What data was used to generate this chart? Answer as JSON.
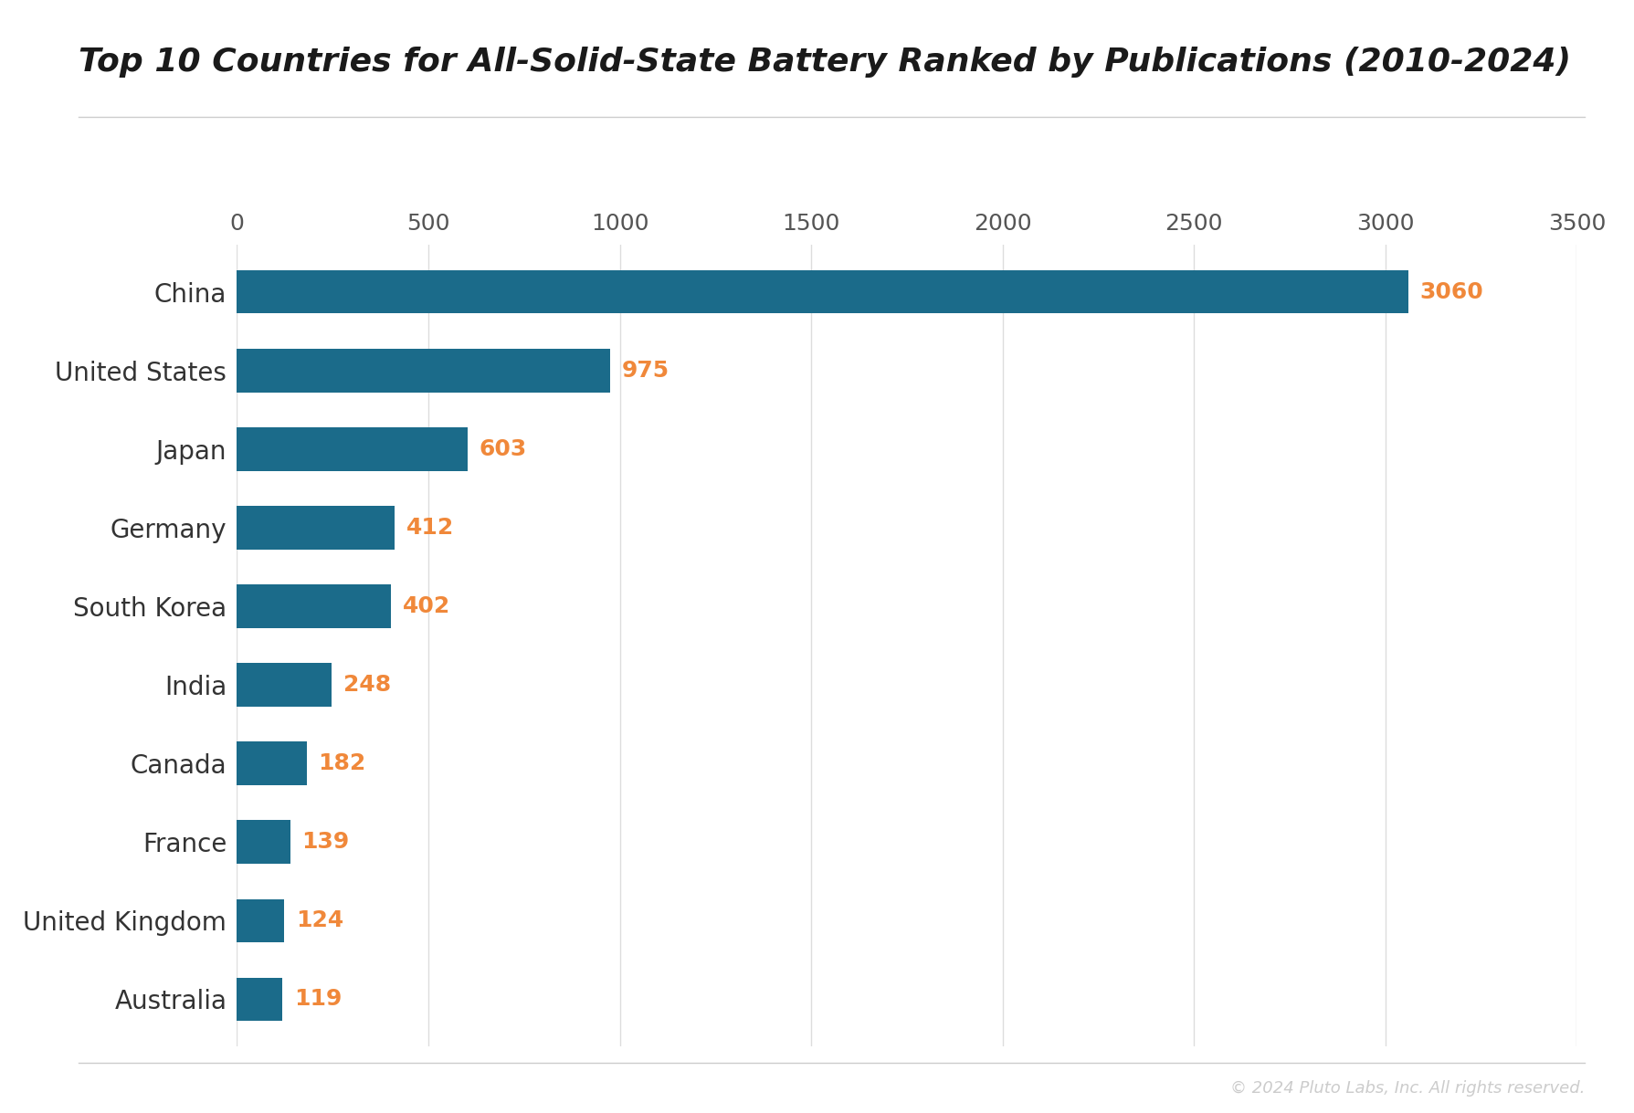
{
  "title": "Top 10 Countries for All-Solid-State Battery Ranked by Publications (2010-2024)",
  "countries": [
    "China",
    "United States",
    "Japan",
    "Germany",
    "South Korea",
    "India",
    "Canada",
    "France",
    "United Kingdom",
    "Australia"
  ],
  "values": [
    3060,
    975,
    603,
    412,
    402,
    248,
    182,
    139,
    124,
    119
  ],
  "bar_color": "#1b6b8a",
  "value_color": "#f0883a",
  "background_color": "#ffffff",
  "xlim": [
    0,
    3500
  ],
  "xticks": [
    0,
    500,
    1000,
    1500,
    2000,
    2500,
    3000,
    3500
  ],
  "title_fontsize": 26,
  "tick_label_fontsize": 18,
  "value_fontsize": 18,
  "country_fontsize": 20,
  "copyright_text": "© 2024 Pluto Labs, Inc. All rights reserved.",
  "copyright_color": "#cccccc",
  "grid_color": "#dddddd",
  "separator_color": "#cccccc",
  "title_color": "#1a1a1a"
}
